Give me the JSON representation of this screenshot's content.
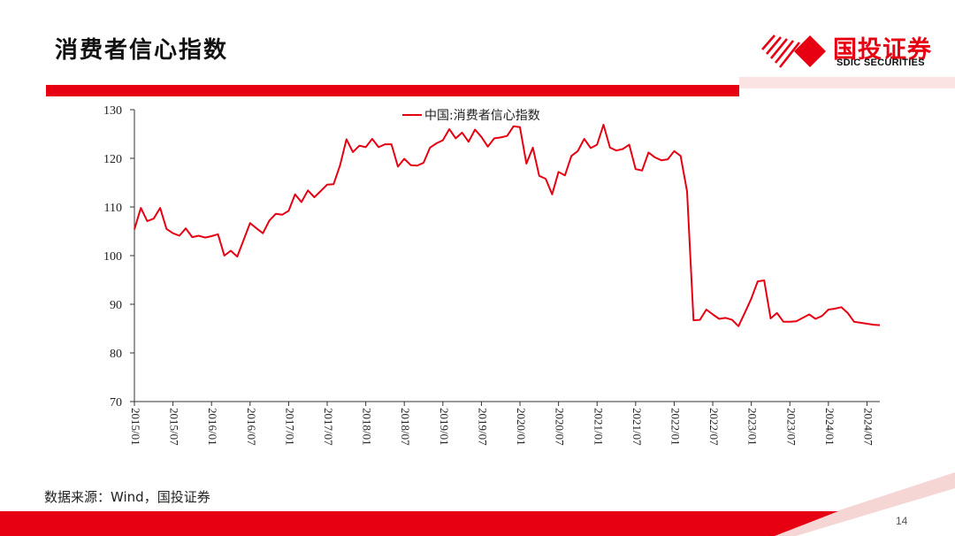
{
  "slide": {
    "title": "消费者信心指数",
    "source": "数据来源：Wind，国投证券",
    "page_number": "14"
  },
  "brand": {
    "name_cn": "国投证券",
    "name_en": "SDIC SECURITIES",
    "accent_color": "#e60012"
  },
  "chart_data": {
    "type": "line",
    "title": "",
    "xlabel": "",
    "ylabel": "",
    "ylim": [
      70,
      130
    ],
    "yticks": [
      70,
      80,
      90,
      100,
      110,
      120,
      130
    ],
    "x_tick_labels": [
      "2015/01",
      "2015/07",
      "2016/01",
      "2016/07",
      "2017/01",
      "2017/07",
      "2018/01",
      "2018/07",
      "2019/01",
      "2019/07",
      "2020/01",
      "2020/07",
      "2021/01",
      "2021/07",
      "2022/01",
      "2022/07",
      "2023/01",
      "2023/07",
      "2024/01",
      "2024/07"
    ],
    "legend_position": "top-center",
    "grid": false,
    "x_start": "2015/01",
    "x_end": "2024/10",
    "series": [
      {
        "name": "中国:消费者信心指数",
        "color": "#e60012",
        "values": [
          105.4,
          109.8,
          107.1,
          107.6,
          109.8,
          105.5,
          104.6,
          104.1,
          105.6,
          103.8,
          104.1,
          103.7,
          104.0,
          104.4,
          100.0,
          101.0,
          99.8,
          103.2,
          106.7,
          105.6,
          104.6,
          107.2,
          108.6,
          108.4,
          109.2,
          112.6,
          111.0,
          113.4,
          112.0,
          113.3,
          114.6,
          114.7,
          118.6,
          123.9,
          121.3,
          122.6,
          122.3,
          124.0,
          122.3,
          122.9,
          122.9,
          118.3,
          119.9,
          118.6,
          118.5,
          119.1,
          122.2,
          123.1,
          123.7,
          126.0,
          124.1,
          125.3,
          123.4,
          125.9,
          124.4,
          122.4,
          124.1,
          124.3,
          124.6,
          126.6,
          126.4,
          118.9,
          122.2,
          116.4,
          115.8,
          112.6,
          117.2,
          116.5,
          120.5,
          121.5,
          124.0,
          122.1,
          122.8,
          126.9,
          122.2,
          121.6,
          121.9,
          122.8,
          117.8,
          117.5,
          121.2,
          120.2,
          119.6,
          119.8,
          121.5,
          120.5,
          113.2,
          86.7,
          86.8,
          88.9,
          87.9,
          87.0,
          87.2,
          86.8,
          85.5,
          88.3,
          91.2,
          94.7,
          94.9,
          87.1,
          88.2,
          86.4,
          86.4,
          86.5,
          87.2,
          87.9,
          87.0,
          87.6,
          88.9,
          89.1,
          89.4,
          88.2,
          86.4,
          86.2,
          86.0,
          85.8,
          85.7
        ]
      }
    ]
  }
}
